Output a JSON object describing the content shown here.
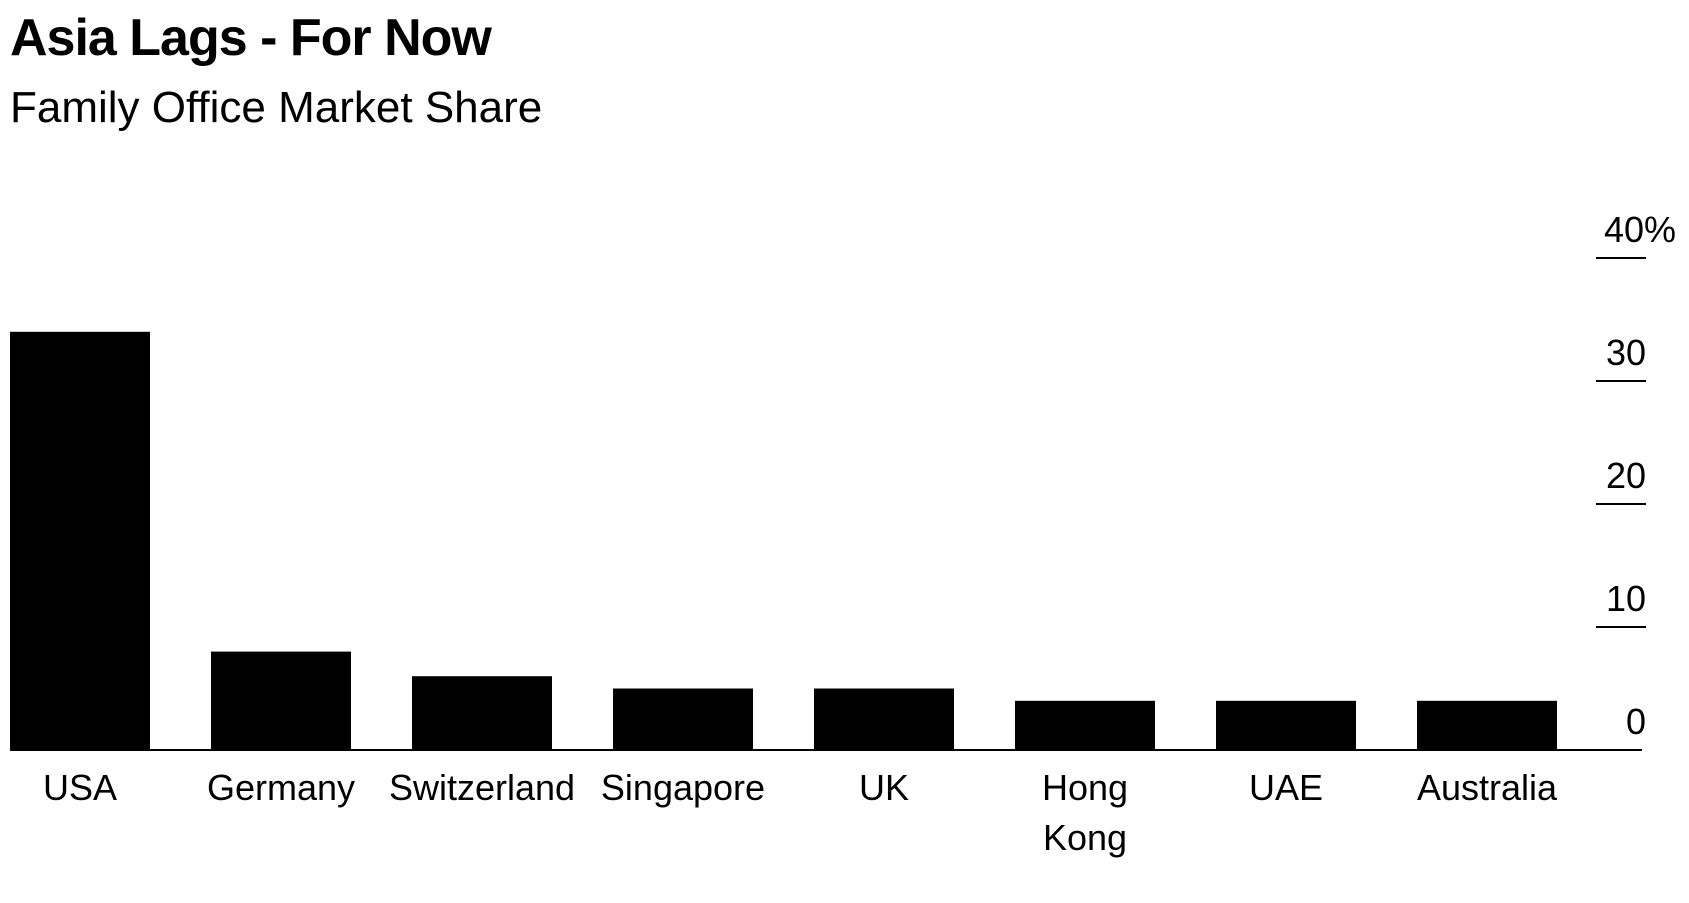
{
  "chart_data": {
    "type": "bar",
    "title": "Asia Lags - For Now",
    "subtitle": "Family Office Market Share",
    "categories": [
      "USA",
      "Germany",
      "Switzerland",
      "Singapore",
      "UK",
      "Hong Kong",
      "UAE",
      "Australia"
    ],
    "category_lines": [
      [
        "USA"
      ],
      [
        "Germany"
      ],
      [
        "Switzerland"
      ],
      [
        "Singapore"
      ],
      [
        "UK"
      ],
      [
        "Hong",
        "Kong"
      ],
      [
        "UAE"
      ],
      [
        "Australia"
      ]
    ],
    "values": [
      34,
      8,
      6,
      5,
      5,
      4,
      4,
      4
    ],
    "ylim": [
      0,
      40
    ],
    "yticks": [
      0,
      10,
      20,
      30,
      40
    ],
    "ytick_labels": [
      "0",
      "10",
      "20",
      "30",
      "40%"
    ],
    "ylabel": "",
    "xlabel": "",
    "axis_side": "right",
    "grid": false,
    "bar_color": "#000000"
  }
}
